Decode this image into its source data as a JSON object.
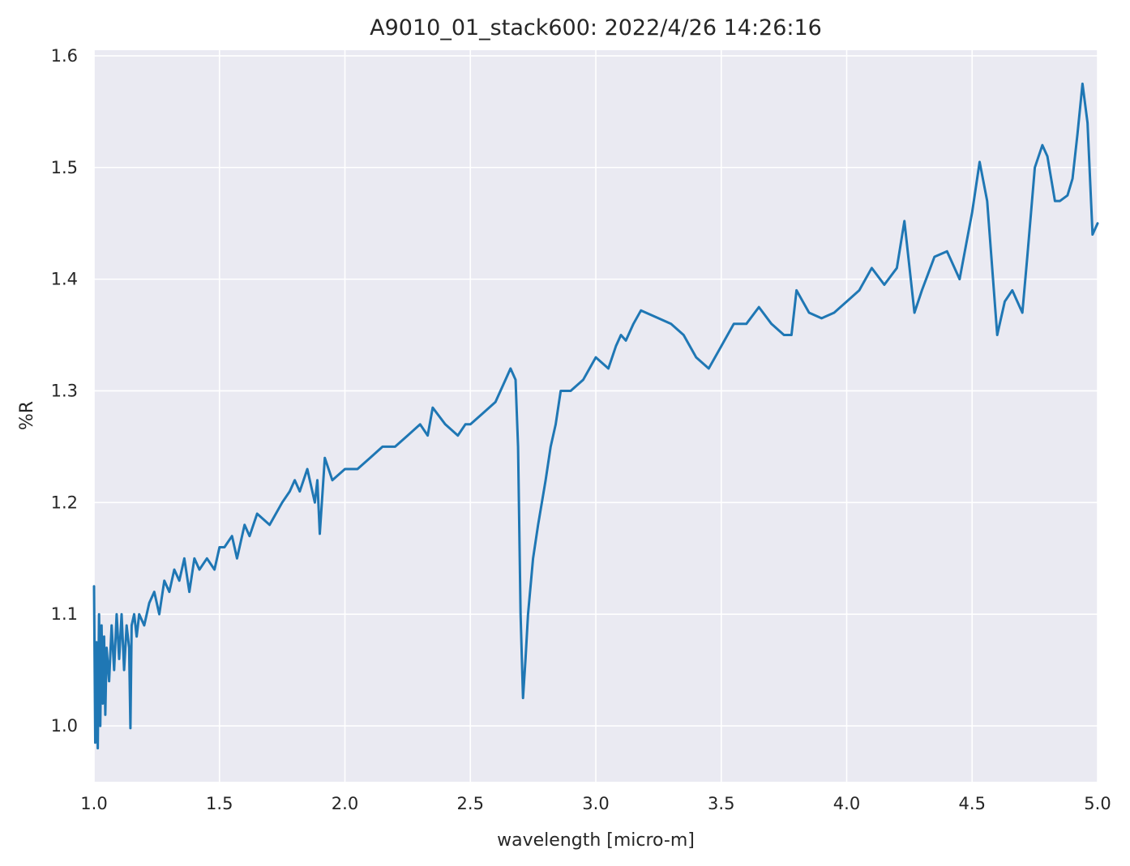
{
  "chart_data": {
    "type": "line",
    "title": "A9010_01_stack600:  2022/4/26 14:26:16",
    "xlabel": "wavelength [micro-m]",
    "ylabel": "%R",
    "xlim": [
      1.0,
      5.0
    ],
    "ylim": [
      0.95,
      1.605
    ],
    "xticks": [
      "1.0",
      "1.5",
      "2.0",
      "2.5",
      "3.0",
      "3.5",
      "4.0",
      "4.5",
      "5.0"
    ],
    "yticks": [
      "1.0",
      "1.1",
      "1.2",
      "1.3",
      "1.4",
      "1.5",
      "1.6"
    ],
    "xtick_values": [
      1.0,
      1.5,
      2.0,
      2.5,
      3.0,
      3.5,
      4.0,
      4.5,
      5.0
    ],
    "ytick_values": [
      1.0,
      1.1,
      1.2,
      1.3,
      1.4,
      1.5,
      1.6
    ],
    "grid": true,
    "background_color": "#eaeaf2",
    "grid_color": "#ffffff",
    "series": [
      {
        "color": "#1f77b4",
        "x": [
          1.0,
          1.005,
          1.01,
          1.015,
          1.02,
          1.025,
          1.03,
          1.035,
          1.04,
          1.045,
          1.05,
          1.06,
          1.07,
          1.08,
          1.09,
          1.1,
          1.11,
          1.12,
          1.13,
          1.14,
          1.145,
          1.15,
          1.16,
          1.17,
          1.18,
          1.2,
          1.22,
          1.24,
          1.26,
          1.28,
          1.3,
          1.32,
          1.34,
          1.36,
          1.38,
          1.4,
          1.42,
          1.45,
          1.48,
          1.5,
          1.52,
          1.55,
          1.57,
          1.6,
          1.62,
          1.65,
          1.7,
          1.75,
          1.78,
          1.8,
          1.82,
          1.85,
          1.88,
          1.89,
          1.9,
          1.92,
          1.95,
          2.0,
          2.05,
          2.1,
          2.15,
          2.2,
          2.25,
          2.3,
          2.33,
          2.35,
          2.4,
          2.45,
          2.48,
          2.5,
          2.55,
          2.6,
          2.62,
          2.64,
          2.66,
          2.68,
          2.69,
          2.7,
          2.71,
          2.72,
          2.73,
          2.75,
          2.77,
          2.8,
          2.82,
          2.84,
          2.86,
          2.88,
          2.9,
          2.95,
          3.0,
          3.05,
          3.08,
          3.1,
          3.12,
          3.15,
          3.18,
          3.2,
          3.25,
          3.3,
          3.35,
          3.4,
          3.45,
          3.5,
          3.55,
          3.6,
          3.65,
          3.7,
          3.75,
          3.78,
          3.8,
          3.85,
          3.9,
          3.95,
          4.0,
          4.05,
          4.1,
          4.15,
          4.2,
          4.23,
          4.27,
          4.3,
          4.35,
          4.4,
          4.45,
          4.5,
          4.53,
          4.56,
          4.6,
          4.63,
          4.66,
          4.7,
          4.72,
          4.75,
          4.78,
          4.8,
          4.83,
          4.85,
          4.88,
          4.9,
          4.92,
          4.94,
          4.96,
          4.98,
          5.0
        ],
        "y": [
          1.125,
          0.985,
          1.075,
          0.98,
          1.1,
          1.0,
          1.09,
          1.02,
          1.08,
          1.01,
          1.07,
          1.04,
          1.09,
          1.05,
          1.1,
          1.06,
          1.1,
          1.05,
          1.09,
          1.07,
          0.998,
          1.09,
          1.1,
          1.08,
          1.1,
          1.09,
          1.11,
          1.12,
          1.1,
          1.13,
          1.12,
          1.14,
          1.13,
          1.15,
          1.12,
          1.15,
          1.14,
          1.15,
          1.14,
          1.16,
          1.16,
          1.17,
          1.15,
          1.18,
          1.17,
          1.19,
          1.18,
          1.2,
          1.21,
          1.22,
          1.21,
          1.23,
          1.2,
          1.22,
          1.172,
          1.24,
          1.22,
          1.23,
          1.23,
          1.24,
          1.25,
          1.25,
          1.26,
          1.27,
          1.26,
          1.285,
          1.27,
          1.26,
          1.27,
          1.27,
          1.28,
          1.29,
          1.3,
          1.31,
          1.32,
          1.31,
          1.25,
          1.1,
          1.025,
          1.06,
          1.1,
          1.15,
          1.18,
          1.22,
          1.25,
          1.27,
          1.3,
          1.3,
          1.3,
          1.31,
          1.33,
          1.32,
          1.34,
          1.35,
          1.345,
          1.36,
          1.372,
          1.37,
          1.365,
          1.36,
          1.35,
          1.33,
          1.32,
          1.34,
          1.36,
          1.36,
          1.375,
          1.36,
          1.35,
          1.35,
          1.39,
          1.37,
          1.365,
          1.37,
          1.38,
          1.39,
          1.41,
          1.395,
          1.41,
          1.452,
          1.37,
          1.39,
          1.42,
          1.425,
          1.4,
          1.46,
          1.505,
          1.47,
          1.35,
          1.38,
          1.39,
          1.37,
          1.42,
          1.5,
          1.52,
          1.51,
          1.47,
          1.47,
          1.475,
          1.49,
          1.53,
          1.575,
          1.54,
          1.44,
          1.45
        ]
      }
    ]
  }
}
